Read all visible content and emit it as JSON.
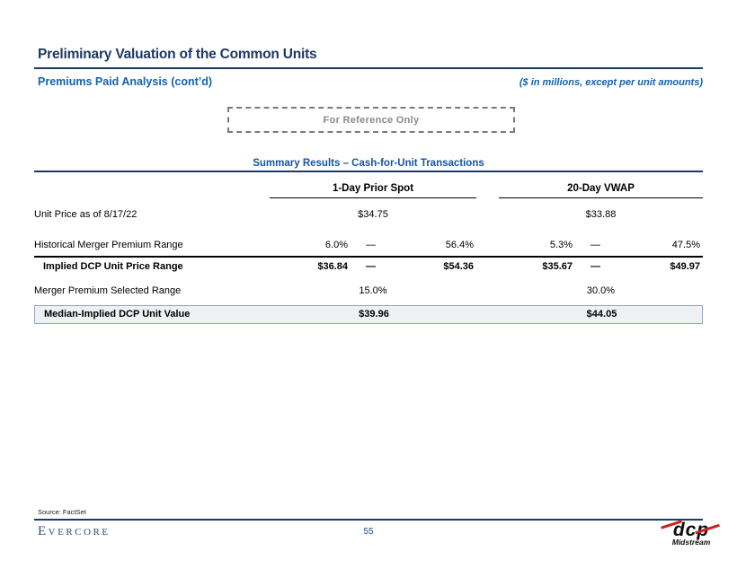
{
  "slide": {
    "title": "Preliminary Valuation of the Common Units",
    "section": "Premiums Paid Analysis (cont’d)",
    "units_note": "($ in millions, except per unit amounts)",
    "stamp": "For Reference Only"
  },
  "table": {
    "heading": "Summary Results – Cash-for-Unit Transactions",
    "groups": {
      "g1": "1-Day Prior Spot",
      "g2": "20-Day VWAP"
    },
    "rows": {
      "unit_price": {
        "label": "Unit Price as of 8/17/22",
        "g1": "$34.75",
        "g2": "$33.88"
      },
      "historical": {
        "label": "Historical Merger Premium Range",
        "g1_low": "6.0%",
        "g1_dash": "—",
        "g1_high": "56.4%",
        "g2_low": "5.3%",
        "g2_dash": "—",
        "g2_high": "47.5%"
      },
      "implied": {
        "label": "Implied DCP Unit Price Range",
        "g1_low": "$36.84",
        "g1_dash": "—",
        "g1_high": "$54.36",
        "g2_low": "$35.67",
        "g2_dash": "—",
        "g2_high": "$49.97"
      },
      "selected": {
        "label": "Merger Premium Selected Range",
        "g1": "15.0%",
        "g2": "30.0%"
      },
      "median": {
        "label": "Median-Implied DCP Unit Value",
        "g1": "$39.96",
        "g2": "$44.05"
      }
    }
  },
  "footer": {
    "source": "Source: FactSet",
    "bank_logo": "Evercore",
    "page_number": "55",
    "company_logo": {
      "name": "dcp",
      "sub": "Midstream"
    }
  },
  "colors": {
    "navy": "#1F3864",
    "accent_blue": "#1262AE",
    "heading_blue": "#17549E",
    "stamp_gray": "#8A8A8A",
    "median_fill": "#EEF0F4",
    "median_border": "#95A3C6",
    "logo_red": "#C9251D",
    "footer_navy": "#2B4B7E"
  }
}
